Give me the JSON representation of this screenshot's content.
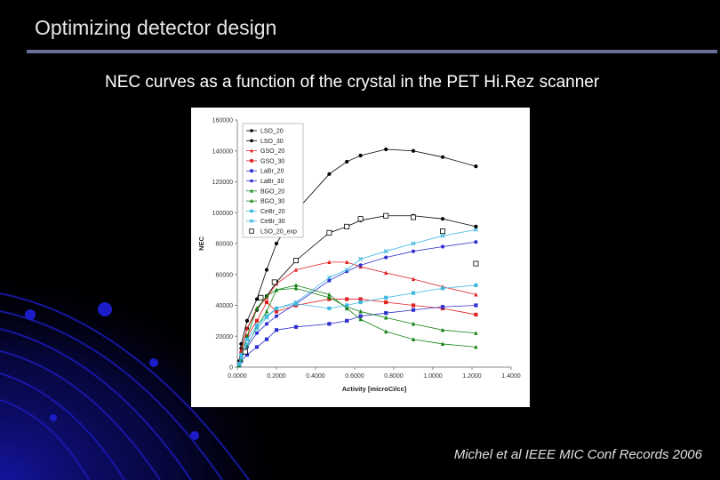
{
  "slide": {
    "title": "Optimizing detector design",
    "subtitle": "NEC curves as a function of the crystal in the PET Hi.Rez scanner",
    "citation": "Michel et al IEEE MIC Conf Records 2006",
    "colors": {
      "background": "#000000",
      "rule": "#6a6f96",
      "decor": "#1a1aa8"
    }
  },
  "chart_data": {
    "type": "line",
    "xlabel": "Activity [microCi/cc]",
    "ylabel": "NEC",
    "xlim": [
      0,
      1.4
    ],
    "ylim": [
      0,
      160000
    ],
    "xticks": [
      "0.0000",
      "0.2000",
      "0.4000",
      "0.6000",
      "0.8000",
      "1.0000",
      "1.2000",
      "1.4000"
    ],
    "yticks": [
      "0",
      "20000",
      "40000",
      "60000",
      "80000",
      "100000",
      "120000",
      "140000",
      "160000"
    ],
    "grid": false,
    "legend": "top-left",
    "series": [
      {
        "name": "LSO_20",
        "color": "#000000",
        "marker": "circle",
        "x": [
          0.01,
          0.02,
          0.05,
          0.1,
          0.15,
          0.2,
          0.3,
          0.47,
          0.56,
          0.63,
          0.76,
          0.9,
          1.05,
          1.22
        ],
        "y": [
          4000,
          15000,
          30000,
          44000,
          63000,
          80000,
          101000,
          125000,
          133000,
          137000,
          141000,
          140000,
          136000,
          130000
        ]
      },
      {
        "name": "LSO_30",
        "color": "#000000",
        "marker": "circle",
        "x": [
          0.01,
          0.02,
          0.05,
          0.1,
          0.15,
          0.2,
          0.3,
          0.47,
          0.56,
          0.63,
          0.76,
          0.9,
          1.05,
          1.22
        ],
        "y": [
          3000,
          12000,
          25000,
          37000,
          46000,
          55000,
          69000,
          87000,
          91000,
          95000,
          98000,
          98000,
          96000,
          91000
        ]
      },
      {
        "name": "GSO_20",
        "color": "#e02020",
        "marker": "triangle",
        "x": [
          0.01,
          0.02,
          0.05,
          0.1,
          0.15,
          0.2,
          0.3,
          0.47,
          0.56,
          0.63,
          0.76,
          0.9,
          1.05,
          1.22
        ],
        "y": [
          3000,
          11000,
          25000,
          38000,
          45000,
          54000,
          63000,
          68000,
          68000,
          65000,
          61000,
          57000,
          52000,
          47000
        ]
      },
      {
        "name": "GSO_30",
        "color": "#e02020",
        "marker": "square",
        "x": [
          0.01,
          0.02,
          0.05,
          0.1,
          0.15,
          0.2,
          0.3,
          0.47,
          0.56,
          0.63,
          0.76,
          0.9,
          1.05,
          1.22
        ],
        "y": [
          2000,
          9000,
          20000,
          30000,
          42000,
          36000,
          40000,
          44000,
          44000,
          44000,
          42000,
          40000,
          38000,
          34000
        ]
      },
      {
        "name": "LaBr_20",
        "color": "#3030d0",
        "marker": "square",
        "x": [
          0.01,
          0.02,
          0.05,
          0.1,
          0.15,
          0.2,
          0.3,
          0.47,
          0.56,
          0.63,
          0.76,
          0.9,
          1.05,
          1.22
        ],
        "y": [
          1000,
          4000,
          8000,
          13000,
          18000,
          24000,
          26000,
          28000,
          30000,
          33000,
          35000,
          37000,
          39000,
          40000
        ]
      },
      {
        "name": "LaBr_30",
        "color": "#3030d0",
        "marker": "circle",
        "x": [
          0.01,
          0.02,
          0.05,
          0.1,
          0.15,
          0.2,
          0.3,
          0.47,
          0.56,
          0.63,
          0.76,
          0.9,
          1.05,
          1.22
        ],
        "y": [
          2000,
          5000,
          13000,
          22000,
          28000,
          33000,
          41000,
          56000,
          62000,
          66000,
          71000,
          75000,
          78000,
          81000
        ]
      },
      {
        "name": "BGO_20",
        "color": "#108010",
        "marker": "triangle",
        "x": [
          0.01,
          0.02,
          0.05,
          0.1,
          0.15,
          0.2,
          0.3,
          0.47,
          0.56,
          0.63,
          0.76,
          0.9,
          1.05,
          1.22
        ],
        "y": [
          2000,
          8000,
          20000,
          38000,
          46000,
          50000,
          51000,
          45000,
          39000,
          36000,
          32000,
          28000,
          24000,
          22000
        ]
      },
      {
        "name": "BGO_30",
        "color": "#108010",
        "marker": "triangle",
        "x": [
          0.01,
          0.02,
          0.05,
          0.1,
          0.15,
          0.2,
          0.3,
          0.47,
          0.56,
          0.63,
          0.76,
          0.9,
          1.05,
          1.22
        ],
        "y": [
          1000,
          5000,
          14000,
          26000,
          36000,
          50000,
          53000,
          47000,
          38000,
          31000,
          23000,
          18000,
          15000,
          13000
        ]
      },
      {
        "name": "CeBr_20",
        "color": "#40b8e0",
        "marker": "square",
        "x": [
          0.01,
          0.02,
          0.05,
          0.1,
          0.15,
          0.2,
          0.3,
          0.47,
          0.56,
          0.63,
          0.76,
          0.9,
          1.05,
          1.22
        ],
        "y": [
          2000,
          8000,
          18000,
          27000,
          33000,
          38000,
          41000,
          38000,
          40000,
          42000,
          45000,
          48000,
          51000,
          53000
        ]
      },
      {
        "name": "CeBr_30",
        "color": "#40b8e0",
        "marker": "x",
        "x": [
          0.01,
          0.02,
          0.05,
          0.1,
          0.15,
          0.2,
          0.3,
          0.47,
          0.56,
          0.63,
          0.76,
          0.9,
          1.05,
          1.22
        ],
        "y": [
          2000,
          6000,
          15000,
          25000,
          32000,
          38000,
          42000,
          58000,
          63000,
          70000,
          75000,
          80000,
          85000,
          89000
        ]
      },
      {
        "name": "LSO_20_exp",
        "color": "#000000",
        "marker": "open-square",
        "line": false,
        "x": [
          0.04,
          0.12,
          0.19,
          0.3,
          0.47,
          0.56,
          0.63,
          0.76,
          0.9,
          1.05,
          1.22
        ],
        "y": [
          10000,
          45000,
          55000,
          69000,
          87000,
          91000,
          96000,
          98000,
          97000,
          88000,
          67000
        ]
      }
    ]
  }
}
